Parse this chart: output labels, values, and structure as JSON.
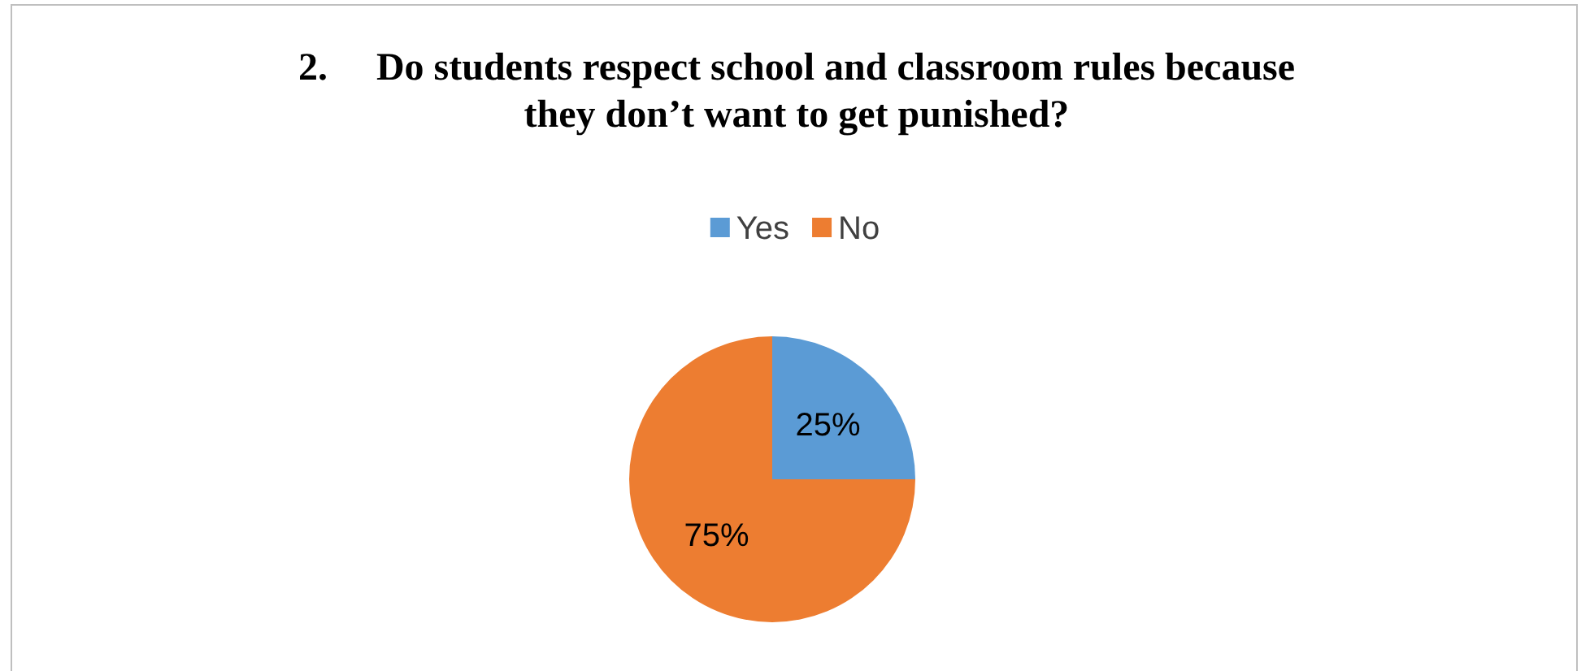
{
  "chart_data": {
    "type": "pie",
    "title": "2.     Do students respect school and classroom rules because they don’t want to get punished?",
    "categories": [
      "Yes",
      "No"
    ],
    "values": [
      25,
      75
    ],
    "colors": [
      "#5b9bd5",
      "#ed7d31"
    ],
    "value_labels": [
      "25%",
      "75%"
    ],
    "legend": "top"
  }
}
